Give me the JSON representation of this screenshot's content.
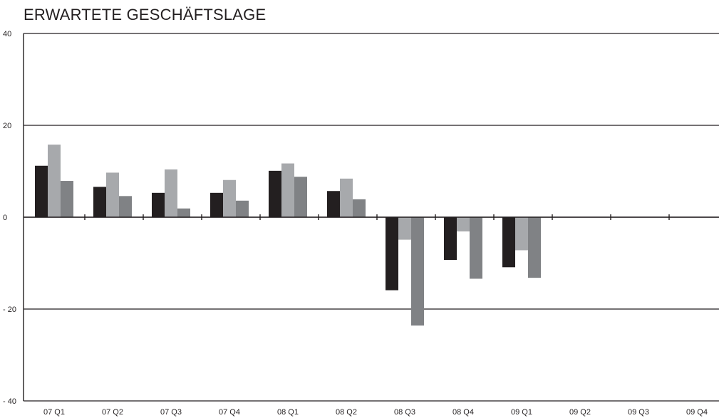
{
  "chart_data": {
    "type": "bar",
    "title": "ERWARTETE GESCHÄFTSLAGE",
    "xlabel": "",
    "ylabel": "",
    "ylim": [
      -40,
      40
    ],
    "yticks": [
      40,
      20,
      0,
      -20,
      -40
    ],
    "ytick_labels": [
      "40",
      "20",
      "0",
      "- 20",
      "- 40"
    ],
    "categories": [
      "07 Q1",
      "07 Q2",
      "07 Q3",
      "07 Q4",
      "08 Q1",
      "08 Q2",
      "08 Q3",
      "08 Q4",
      "09 Q1",
      "09 Q2",
      "09 Q3",
      "09 Q4"
    ],
    "series": [
      {
        "color": "#231f20",
        "values": [
          11.2,
          6.6,
          5.3,
          5.3,
          10.1,
          5.7,
          -15.9,
          -9.3,
          -10.9,
          null,
          null,
          null
        ]
      },
      {
        "color": "#a7a9ac",
        "values": [
          15.8,
          9.7,
          10.4,
          8.1,
          11.7,
          8.4,
          -4.9,
          -3.1,
          -7.2,
          null,
          null,
          null
        ]
      },
      {
        "color": "#808285",
        "values": [
          7.9,
          4.6,
          1.9,
          3.6,
          8.8,
          3.9,
          -23.6,
          -13.4,
          -13.2,
          null,
          null,
          null
        ]
      }
    ],
    "grid": true,
    "legend": "none"
  }
}
